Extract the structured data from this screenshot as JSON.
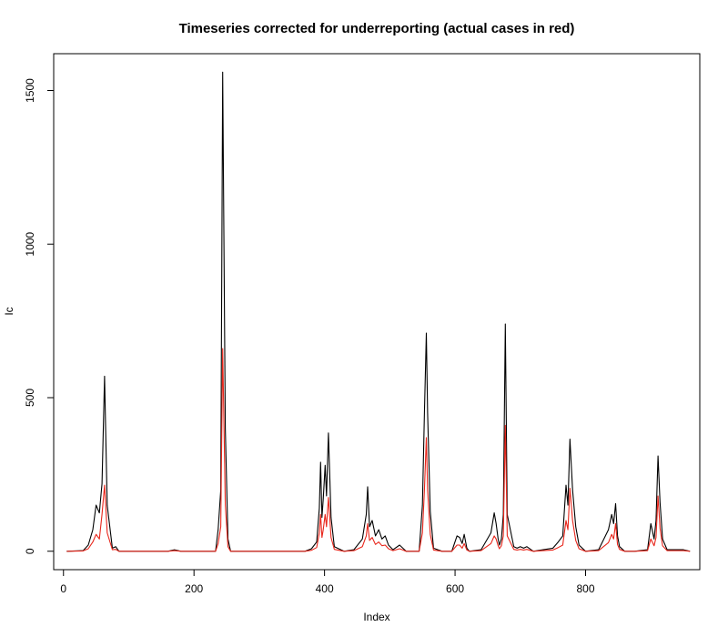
{
  "chart_data": {
    "type": "line",
    "title": "Timeseries corrected for underreporting (actual cases in red)",
    "xlabel": "Index",
    "ylabel": "Ic",
    "xlim": [
      -15,
      975
    ],
    "ylim": [
      -60,
      1620
    ],
    "x_ticks": [
      0,
      200,
      400,
      600,
      800
    ],
    "y_ticks": [
      0,
      500,
      1000,
      1500
    ],
    "grid": false,
    "legend": "none",
    "series": [
      {
        "color": "#000000",
        "x": [
          5,
          30,
          38,
          45,
          50,
          55,
          59,
          63,
          67,
          75,
          80,
          85,
          160,
          170,
          180,
          228,
          233,
          237,
          241,
          244,
          248,
          252,
          256,
          370,
          380,
          388,
          392,
          394,
          396,
          398,
          401,
          403,
          406,
          410,
          415,
          430,
          445,
          458,
          464,
          466,
          469,
          473,
          478,
          483,
          488,
          493,
          498,
          505,
          515,
          520,
          525,
          545,
          550,
          553,
          556,
          558,
          562,
          567,
          580,
          595,
          603,
          607,
          611,
          614,
          618,
          622,
          640,
          655,
          660,
          663,
          666,
          668,
          671,
          674,
          677,
          680,
          690,
          695,
          700,
          705,
          710,
          720,
          735,
          750,
          758,
          765,
          770,
          773,
          776,
          780,
          785,
          790,
          800,
          820,
          835,
          840,
          843,
          846,
          849,
          852,
          860,
          875,
          895,
          900,
          905,
          908,
          911,
          914,
          918,
          925,
          935,
          950,
          960
        ],
        "y": [
          0,
          2,
          20,
          70,
          150,
          125,
          220,
          570,
          150,
          10,
          15,
          0,
          0,
          5,
          0,
          0,
          0,
          70,
          200,
          1560,
          400,
          40,
          0,
          0,
          8,
          30,
          140,
          290,
          110,
          170,
          280,
          180,
          385,
          110,
          15,
          0,
          5,
          40,
          120,
          210,
          80,
          100,
          50,
          70,
          40,
          50,
          20,
          5,
          20,
          10,
          0,
          0,
          150,
          450,
          710,
          450,
          130,
          10,
          0,
          0,
          50,
          45,
          25,
          55,
          10,
          0,
          5,
          60,
          125,
          90,
          40,
          20,
          40,
          120,
          740,
          120,
          15,
          10,
          15,
          10,
          15,
          0,
          5,
          10,
          30,
          50,
          215,
          150,
          365,
          200,
          80,
          20,
          0,
          5,
          70,
          120,
          90,
          155,
          50,
          15,
          0,
          0,
          5,
          90,
          40,
          100,
          310,
          160,
          40,
          5,
          5,
          5,
          0
        ]
      },
      {
        "color": "#e8261b",
        "x": [
          5,
          30,
          38,
          45,
          50,
          55,
          59,
          63,
          67,
          75,
          80,
          85,
          160,
          170,
          180,
          228,
          233,
          237,
          241,
          244,
          248,
          252,
          256,
          370,
          380,
          388,
          392,
          394,
          396,
          398,
          401,
          403,
          406,
          410,
          415,
          430,
          445,
          458,
          464,
          466,
          469,
          473,
          478,
          483,
          488,
          493,
          498,
          505,
          515,
          520,
          525,
          545,
          550,
          553,
          556,
          558,
          562,
          567,
          580,
          595,
          603,
          607,
          611,
          614,
          618,
          622,
          640,
          655,
          660,
          663,
          666,
          668,
          671,
          674,
          677,
          680,
          690,
          695,
          700,
          705,
          710,
          720,
          735,
          750,
          758,
          765,
          770,
          773,
          776,
          780,
          785,
          790,
          800,
          820,
          835,
          840,
          843,
          846,
          849,
          852,
          860,
          875,
          895,
          900,
          905,
          908,
          911,
          914,
          918,
          925,
          935,
          950,
          960
        ],
        "y": [
          0,
          1,
          8,
          30,
          55,
          40,
          120,
          215,
          60,
          5,
          6,
          0,
          0,
          2,
          0,
          0,
          0,
          25,
          80,
          660,
          150,
          15,
          0,
          0,
          3,
          12,
          60,
          120,
          45,
          70,
          120,
          80,
          175,
          45,
          6,
          0,
          2,
          15,
          50,
          90,
          35,
          45,
          22,
          30,
          18,
          20,
          8,
          2,
          8,
          4,
          0,
          0,
          60,
          200,
          370,
          200,
          55,
          4,
          0,
          0,
          20,
          20,
          10,
          25,
          4,
          0,
          2,
          25,
          50,
          40,
          18,
          8,
          18,
          50,
          410,
          50,
          6,
          4,
          6,
          4,
          6,
          0,
          2,
          4,
          12,
          20,
          100,
          70,
          205,
          100,
          35,
          8,
          0,
          2,
          28,
          55,
          40,
          90,
          22,
          6,
          0,
          0,
          2,
          40,
          18,
          45,
          180,
          75,
          18,
          2,
          2,
          2,
          0
        ]
      }
    ]
  }
}
